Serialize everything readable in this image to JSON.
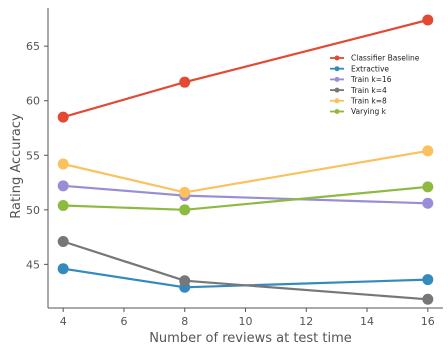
{
  "chart_data": {
    "type": "line",
    "title": "",
    "xlabel": "Number of reviews at test time",
    "ylabel": "Rating Accuracy",
    "x": [
      4,
      8,
      16
    ],
    "xlim": [
      3.5,
      16.5
    ],
    "ylim": [
      41,
      68.5
    ],
    "xticks": [
      4,
      6,
      8,
      10,
      12,
      14,
      16
    ],
    "yticks": [
      45,
      50,
      55,
      60,
      65
    ],
    "grid": false,
    "legend_position": "upper-right",
    "series": [
      {
        "name": "Classifier Baseline",
        "color": "#e24a33",
        "values": [
          58.5,
          61.7,
          67.4
        ]
      },
      {
        "name": "Extractive",
        "color": "#348abd",
        "values": [
          44.6,
          42.9,
          43.6
        ]
      },
      {
        "name": "Train k=16",
        "color": "#988ed5",
        "values": [
          52.2,
          51.3,
          50.6
        ]
      },
      {
        "name": "Train k=4",
        "color": "#777777",
        "values": [
          47.1,
          43.5,
          41.8
        ]
      },
      {
        "name": "Train k=8",
        "color": "#fbc15e",
        "values": [
          54.2,
          51.6,
          55.4
        ]
      },
      {
        "name": "Varying k",
        "color": "#8eba42",
        "values": [
          50.4,
          50.0,
          52.1
        ]
      }
    ]
  }
}
